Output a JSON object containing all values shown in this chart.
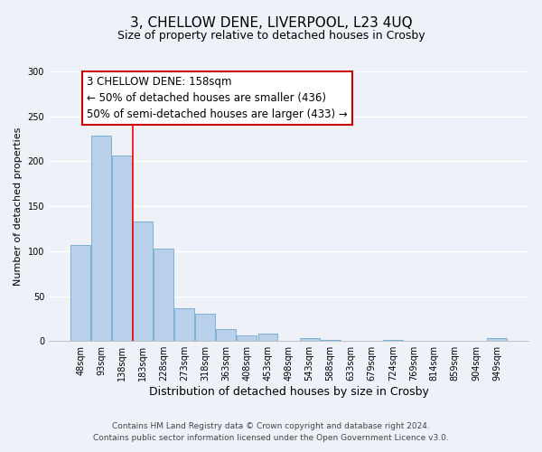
{
  "title": "3, CHELLOW DENE, LIVERPOOL, L23 4UQ",
  "subtitle": "Size of property relative to detached houses in Crosby",
  "xlabel": "Distribution of detached houses by size in Crosby",
  "ylabel": "Number of detached properties",
  "categories": [
    "48sqm",
    "93sqm",
    "138sqm",
    "183sqm",
    "228sqm",
    "273sqm",
    "318sqm",
    "363sqm",
    "408sqm",
    "453sqm",
    "498sqm",
    "543sqm",
    "588sqm",
    "633sqm",
    "679sqm",
    "724sqm",
    "769sqm",
    "814sqm",
    "859sqm",
    "904sqm",
    "949sqm"
  ],
  "values": [
    107,
    229,
    206,
    133,
    103,
    36,
    30,
    13,
    6,
    8,
    0,
    3,
    1,
    0,
    0,
    1,
    0,
    0,
    0,
    0,
    3
  ],
  "bar_color": "#b8d0ea",
  "bar_edge_color": "#6fa8d0",
  "red_line_x": 2.5,
  "annotation_title": "3 CHELLOW DENE: 158sqm",
  "annotation_line1": "← 50% of detached houses are smaller (436)",
  "annotation_line2": "50% of semi-detached houses are larger (433) →",
  "annotation_box_color": "#ffffff",
  "annotation_box_edge": "#cc0000",
  "ylim": [
    0,
    300
  ],
  "yticks": [
    0,
    50,
    100,
    150,
    200,
    250,
    300
  ],
  "footer_line1": "Contains HM Land Registry data © Crown copyright and database right 2024.",
  "footer_line2": "Contains public sector information licensed under the Open Government Licence v3.0.",
  "background_color": "#eef2f8",
  "grid_color": "#ffffff",
  "title_fontsize": 11,
  "subtitle_fontsize": 9,
  "xlabel_fontsize": 9,
  "ylabel_fontsize": 8,
  "tick_fontsize": 7,
  "annotation_fontsize": 8.5,
  "footer_fontsize": 6.5
}
